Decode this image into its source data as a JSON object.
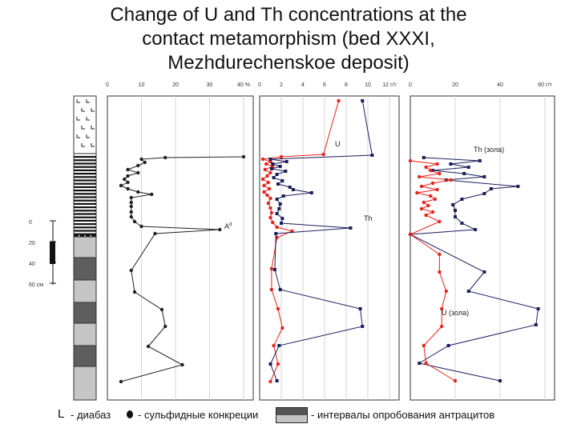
{
  "title_lines": [
    "Change of U and Th concentrations at the",
    "contact metamorphism (bed XXXI,",
    "Mezhdurechenskoe deposit)"
  ],
  "colors": {
    "u": "#e8231c",
    "th": "#1c1f5c",
    "ad": "#222222",
    "grid": "#d6d6d6"
  },
  "column": {
    "scale_ticks": [
      "0",
      "20",
      "40",
      "60 см"
    ],
    "intervals": [
      {
        "type": "diabase"
      },
      {
        "type": "coal-banded"
      },
      {
        "type": "sample-light"
      },
      {
        "type": "sample-dark"
      },
      {
        "type": "sample-light"
      },
      {
        "type": "sample-dark"
      },
      {
        "type": "sample-light"
      },
      {
        "type": "sample-dark"
      },
      {
        "type": "sample-light"
      }
    ]
  },
  "legend": {
    "diabase_symbol": "L",
    "diabase_label": "- диабаз",
    "nodule_label": "- сульфидные конкреции",
    "interval_label": "- интервалы опробования антрацитов"
  },
  "chart_data": [
    {
      "type": "line",
      "panel": "ash",
      "x_ticks": [
        "0",
        "10",
        "20",
        "30",
        "40 %"
      ],
      "xlim": [
        0,
        40
      ],
      "series": [
        {
          "name": "Ad",
          "points": [
            [
              40,
              196
            ],
            [
              17,
              197
            ],
            [
              10,
              199
            ],
            [
              11,
              203
            ],
            [
              9,
              207
            ],
            [
              6,
              212
            ],
            [
              9,
              216
            ],
            [
              6,
              220
            ],
            [
              5,
              224
            ],
            [
              6,
              228
            ],
            [
              4,
              232
            ],
            [
              6,
              236
            ],
            [
              9,
              240
            ],
            [
              13,
              243
            ],
            [
              7,
              247
            ],
            [
              7,
              253
            ],
            [
              7,
              258
            ],
            [
              7,
              265
            ],
            [
              7,
              271
            ],
            [
              8,
              277
            ],
            [
              10,
              283
            ],
            [
              33,
              287
            ],
            [
              14,
              292
            ],
            [
              7,
              338
            ],
            [
              8,
              365
            ],
            [
              16,
              387
            ],
            [
              17,
              408
            ],
            [
              12,
              433
            ],
            [
              22,
              456
            ],
            [
              4,
              477
            ]
          ]
        }
      ]
    },
    {
      "type": "line",
      "panel": "ppm",
      "x_ticks": [
        "0",
        "2",
        "4",
        "6",
        "8",
        "10",
        "12 г/т"
      ],
      "xlim": [
        0,
        12
      ],
      "series": [
        {
          "name": "U",
          "points": [
            [
              7.3,
              126
            ],
            [
              5.9,
              193
            ],
            [
              2.0,
              196
            ],
            [
              0.3,
              199
            ],
            [
              1.0,
              202
            ],
            [
              0.6,
              205
            ],
            [
              1.2,
              208
            ],
            [
              0.5,
              212
            ],
            [
              1.0,
              216
            ],
            [
              0.7,
              220
            ],
            [
              0.3,
              224
            ],
            [
              0.8,
              228
            ],
            [
              0.4,
              232
            ],
            [
              0.9,
              236
            ],
            [
              0.4,
              240
            ],
            [
              0.7,
              244
            ],
            [
              1.0,
              248
            ],
            [
              0.8,
              254
            ],
            [
              1.0,
              260
            ],
            [
              1.1,
              266
            ],
            [
              1.0,
              272
            ],
            [
              1.2,
              278
            ],
            [
              1.6,
              284
            ],
            [
              3.0,
              289
            ],
            [
              1.6,
              297
            ],
            [
              1.1,
              336
            ],
            [
              1.1,
              362
            ],
            [
              1.7,
              386
            ],
            [
              2.1,
              410
            ],
            [
              1.3,
              432
            ],
            [
              1.7,
              455
            ],
            [
              1.0,
              477
            ]
          ]
        },
        {
          "name": "Th",
          "points": [
            [
              9.5,
              126
            ],
            [
              10.4,
              194
            ],
            [
              1.0,
              199
            ],
            [
              2.5,
              202
            ],
            [
              1.2,
              205
            ],
            [
              1.9,
              208
            ],
            [
              1.1,
              211
            ],
            [
              2.4,
              214
            ],
            [
              1.6,
              218
            ],
            [
              1.3,
              222
            ],
            [
              2.1,
              226
            ],
            [
              1.7,
              230
            ],
            [
              2.8,
              234
            ],
            [
              3.1,
              237
            ],
            [
              4.8,
              241
            ],
            [
              2.2,
              245
            ],
            [
              1.6,
              249
            ],
            [
              1.9,
              255
            ],
            [
              1.8,
              261
            ],
            [
              1.6,
              267
            ],
            [
              2.1,
              273
            ],
            [
              2.0,
              279
            ],
            [
              8.4,
              285
            ],
            [
              1.5,
              292
            ],
            [
              1.4,
              337
            ],
            [
              1.9,
              362
            ],
            [
              9.3,
              386
            ],
            [
              9.5,
              408
            ],
            [
              1.8,
              432
            ],
            [
              1.0,
              455
            ],
            [
              1.6,
              476
            ]
          ]
        }
      ]
    },
    {
      "type": "line",
      "panel": "ash-basis",
      "x_ticks": [
        "0",
        "20",
        "40",
        "60 г/т"
      ],
      "xlim": [
        0,
        60
      ],
      "series": [
        {
          "name": "Th (зола)",
          "points": [
            [
              6,
              197
            ],
            [
              31,
              201
            ],
            [
              18,
              205
            ],
            [
              26,
              209
            ],
            [
              10,
              213
            ],
            [
              24,
              217
            ],
            [
              33,
              221
            ],
            [
              16,
              225
            ],
            [
              48,
              233
            ],
            [
              36,
              236
            ],
            [
              33,
              242
            ],
            [
              23,
              249
            ],
            [
              19,
              256
            ],
            [
              20,
              263
            ],
            [
              20,
              271
            ],
            [
              23,
              279
            ],
            [
              29,
              287
            ],
            [
              0,
              293
            ],
            [
              33,
              340
            ],
            [
              26,
              364
            ],
            [
              57,
              386
            ],
            [
              56,
              406
            ],
            [
              17,
              432
            ],
            [
              4,
              454
            ],
            [
              40,
              476
            ]
          ]
        },
        {
          "name": "U (зола)",
          "points": [
            [
              0,
              201
            ],
            [
              12,
              205
            ],
            [
              7,
              209
            ],
            [
              9,
              213
            ],
            [
              13,
              217
            ],
            [
              4,
              221
            ],
            [
              18,
              225
            ],
            [
              10,
              229
            ],
            [
              5,
              233
            ],
            [
              12,
              237
            ],
            [
              3,
              241
            ],
            [
              9,
              245
            ],
            [
              11,
              249
            ],
            [
              6,
              253
            ],
            [
              8,
              257
            ],
            [
              5,
              261
            ],
            [
              10,
              265
            ],
            [
              7,
              269
            ],
            [
              13,
              277
            ],
            [
              0,
              293
            ],
            [
              13,
              318
            ],
            [
              13,
              340
            ],
            [
              16,
              364
            ],
            [
              14,
              386
            ],
            [
              14,
              408
            ],
            [
              6,
              432
            ],
            [
              7,
              454
            ],
            [
              20,
              476
            ]
          ]
        }
      ]
    }
  ]
}
